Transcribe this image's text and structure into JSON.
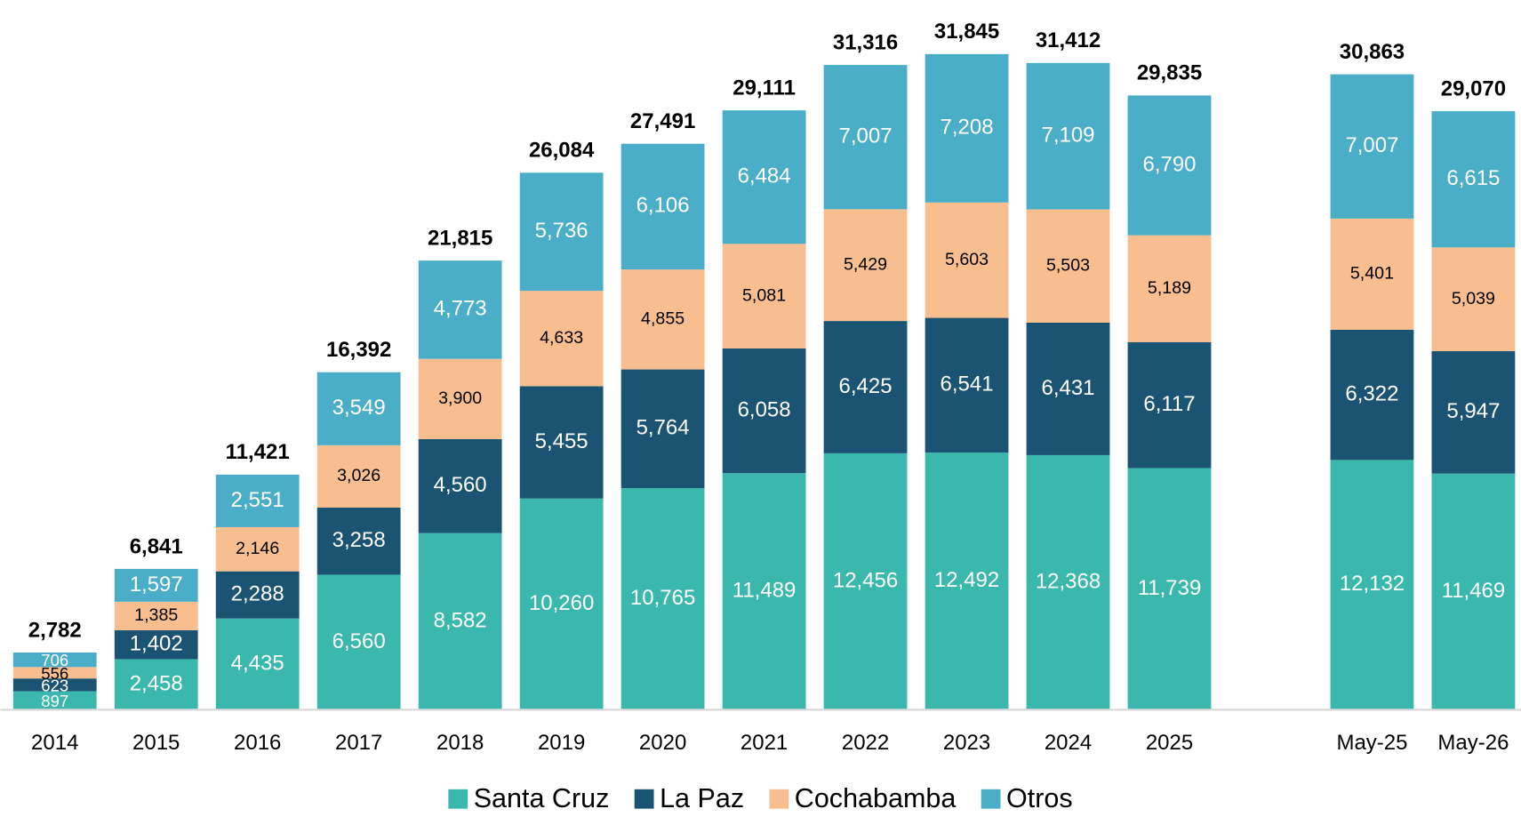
{
  "chart_data": {
    "type": "stacked_bar",
    "categories": [
      "2014",
      "2015",
      "2016",
      "2017",
      "2018",
      "2019",
      "2020",
      "2021",
      "2022",
      "2023",
      "2024",
      "2025",
      null,
      "May-25",
      "May-26"
    ],
    "series": [
      {
        "name": "Santa Cruz",
        "color": "#3bb8ad",
        "label_color": "#ffffff",
        "values": [
          897,
          2458,
          4435,
          6560,
          8582,
          10260,
          10765,
          11489,
          12456,
          12492,
          12368,
          11739,
          null,
          12132,
          11469
        ],
        "value_labels": [
          "897",
          "2,458",
          "4,435",
          "6,560",
          "8,582",
          "10,260",
          "10,765",
          "11,489",
          "12,456",
          "12,492",
          "12,368",
          "11,739",
          null,
          "12,132",
          "11,469"
        ]
      },
      {
        "name": "La Paz",
        "color": "#1b5472",
        "label_color": "#ffffff",
        "values": [
          623,
          1402,
          2288,
          3258,
          4560,
          5455,
          5764,
          6058,
          6425,
          6541,
          6431,
          6117,
          null,
          6322,
          5947
        ],
        "value_labels": [
          "623",
          "1,402",
          "2,288",
          "3,258",
          "4,560",
          "5,455",
          "5,764",
          "6,058",
          "6,425",
          "6,541",
          "6,431",
          "6,117",
          null,
          "6,322",
          "5,947"
        ]
      },
      {
        "name": "Cochabamba",
        "color": "#f8be8f",
        "label_color": "#000000",
        "values": [
          556,
          1385,
          2146,
          3026,
          3900,
          4633,
          4855,
          5081,
          5429,
          5603,
          5503,
          5189,
          null,
          5401,
          5039
        ],
        "value_labels": [
          "556",
          "1,385",
          "2,146",
          "3,026",
          "3,900",
          "4,633",
          "4,855",
          "5,081",
          "5,429",
          "5,603",
          "5,503",
          "5,189",
          null,
          "5,401",
          "5,039"
        ]
      },
      {
        "name": "Otros",
        "color": "#4aaec8",
        "label_color": "#ffffff",
        "values": [
          706,
          1597,
          2551,
          3549,
          4773,
          5736,
          6106,
          6484,
          7007,
          7208,
          7109,
          6790,
          null,
          7007,
          6615
        ],
        "value_labels": [
          "706",
          "1,597",
          "2,551",
          "3,549",
          "4,773",
          "5,736",
          "6,106",
          "6,484",
          "7,007",
          "7,208",
          "7,109",
          "6,790",
          null,
          "7,007",
          "6,615"
        ]
      }
    ],
    "totals": [
      2782,
      6841,
      11421,
      16392,
      21815,
      26084,
      27491,
      29111,
      31316,
      31845,
      31412,
      29835,
      null,
      30863,
      29070
    ],
    "total_labels": [
      "2,782",
      "6,841",
      "11,421",
      "16,392",
      "21,815",
      "26,084",
      "27,491",
      "29,111",
      "31,316",
      "31,845",
      "31,412",
      "29,835",
      null,
      "30,863",
      "29,070"
    ],
    "ylim": [
      0,
      34000
    ],
    "legend": "bottom"
  }
}
